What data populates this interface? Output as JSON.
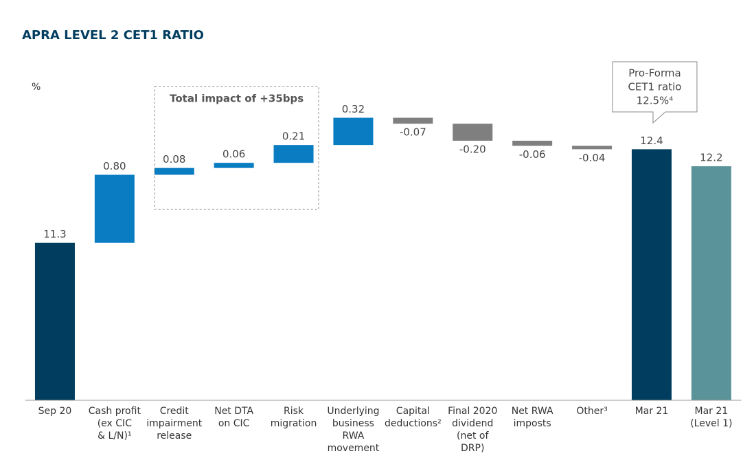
{
  "chart_data": {
    "type": "waterfall",
    "title": "APRA LEVEL 2 CET1 RATIO",
    "unit_label": "%",
    "categories": [
      [
        "Sep 20"
      ],
      [
        "Cash profit",
        "(ex CIC",
        "& L/N)¹"
      ],
      [
        "Credit",
        "impairment",
        "release"
      ],
      [
        "Net DTA",
        "on CIC"
      ],
      [
        "Risk",
        "migration"
      ],
      [
        "Underlying",
        "business",
        "RWA",
        "movement"
      ],
      [
        "Capital",
        "deductions²"
      ],
      [
        "Final 2020",
        "dividend",
        "(net of",
        "DRP)"
      ],
      [
        "Net RWA",
        "imposts"
      ],
      [
        "Other³"
      ],
      [
        "Mar 21"
      ],
      [
        "Mar 21",
        "(Level 1)"
      ]
    ],
    "values": [
      11.3,
      0.8,
      0.08,
      0.06,
      0.21,
      0.32,
      -0.07,
      -0.2,
      -0.06,
      -0.04,
      12.4,
      12.2
    ],
    "value_labels": [
      "11.3",
      "0.80",
      "0.08",
      "0.06",
      "0.21",
      "0.32",
      "-0.07",
      "-0.20",
      "-0.06",
      "-0.04",
      "12.4",
      "12.2"
    ],
    "measures": [
      "absolute",
      "relative",
      "relative",
      "relative",
      "relative",
      "relative",
      "relative",
      "relative",
      "relative",
      "relative",
      "absolute",
      "absolute"
    ],
    "colors": [
      "#003d5e",
      "#0a7dc2",
      "#0a7dc2",
      "#0a7dc2",
      "#0a7dc2",
      "#0a7dc2",
      "#7f7f7f",
      "#7f7f7f",
      "#7f7f7f",
      "#7f7f7f",
      "#003d5e",
      "#5a9399"
    ],
    "ylim": [
      9.45,
      13.0
    ],
    "group_note": {
      "text": "Total impact of +35bps",
      "from": 2,
      "to": 4
    },
    "callout": {
      "lines": [
        "Pro-Forma",
        "CET1 ratio",
        "12.5%⁴"
      ],
      "target": 10
    }
  }
}
